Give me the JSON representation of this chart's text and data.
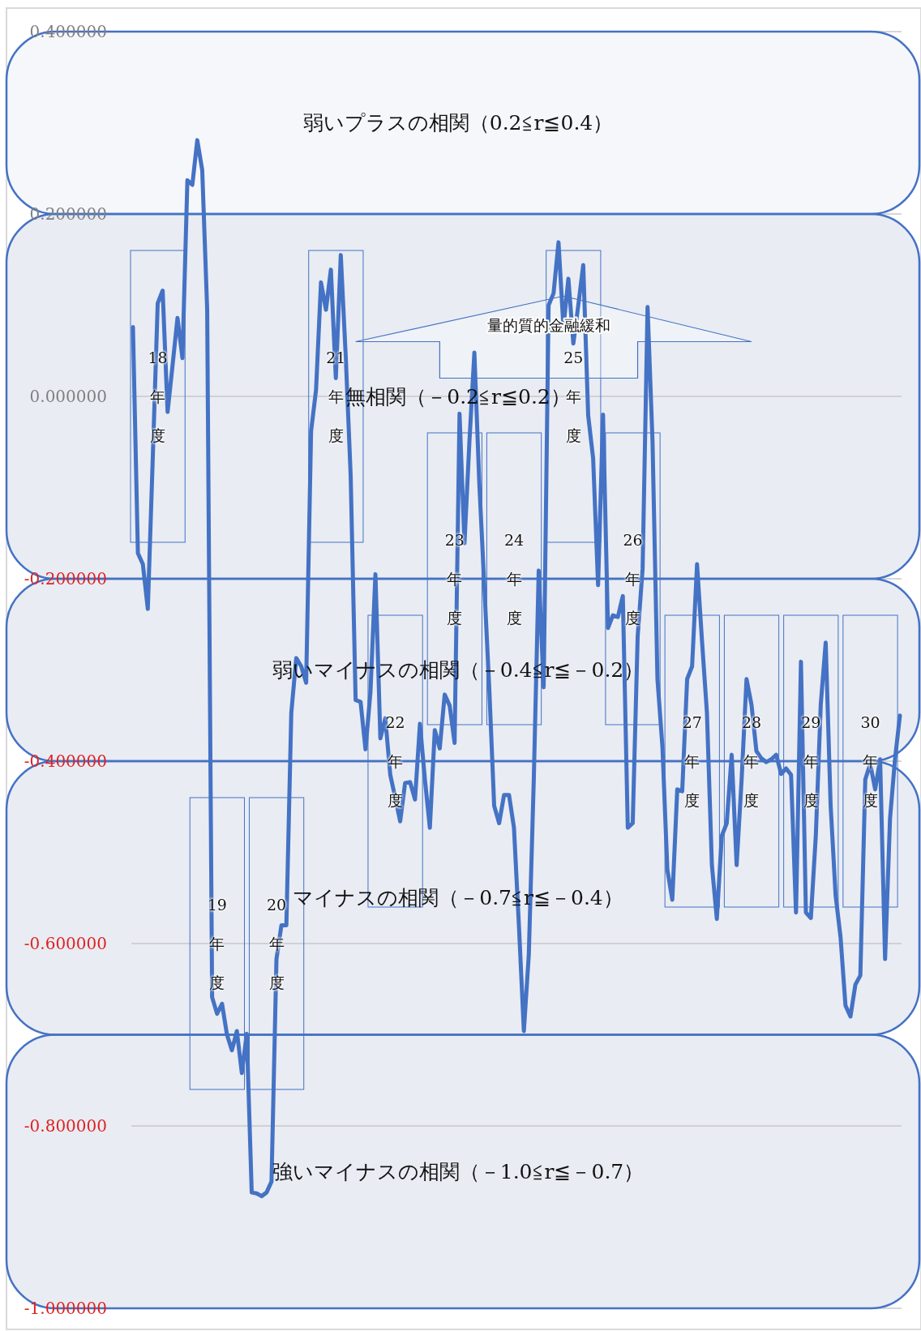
{
  "chart_data": {
    "type": "line",
    "categories": [
      null,
      null,
      null,
      null,
      null,
      null,
      null,
      null,
      null,
      null,
      null,
      null,
      null,
      null,
      null,
      null,
      null,
      null,
      null,
      null,
      null,
      null,
      null,
      null,
      null,
      null,
      null,
      null,
      null,
      null,
      null,
      null,
      null,
      null,
      null,
      null,
      null,
      null,
      null,
      null,
      null,
      null,
      null,
      null,
      null,
      null,
      null,
      null,
      null,
      null,
      null,
      null,
      null,
      null,
      null,
      null,
      null,
      null,
      null,
      null,
      null,
      null,
      null,
      null,
      null,
      null,
      null,
      null,
      null,
      null,
      null,
      null,
      null,
      null,
      null,
      null,
      null,
      null,
      null,
      null,
      null,
      null,
      null,
      null,
      null,
      null,
      null,
      null,
      null,
      null,
      null,
      null,
      null,
      null,
      null,
      null,
      null,
      null,
      null,
      null,
      null,
      null,
      null,
      null,
      null,
      null,
      null,
      null,
      null,
      null,
      null,
      null,
      null,
      null,
      null,
      null,
      null,
      null,
      null,
      null,
      null,
      null,
      null,
      null,
      null,
      null,
      null,
      null,
      null,
      null,
      null,
      null,
      null,
      null,
      null,
      null,
      null,
      null,
      null,
      null,
      null,
      null,
      null,
      null,
      null,
      null,
      null,
      null,
      null,
      null,
      null,
      null,
      null,
      null,
      null,
      null
    ],
    "series": [
      {
        "color": "#4472c4",
        "values": [
          0.076,
          -0.172,
          -0.184,
          -0.233,
          -0.068,
          0.102,
          0.116,
          -0.017,
          0.034,
          0.086,
          0.042,
          0.237,
          0.232,
          0.281,
          0.248,
          0.095,
          -0.659,
          -0.677,
          -0.666,
          -0.7,
          -0.717,
          -0.696,
          -0.742,
          -0.699,
          -0.873,
          -0.874,
          -0.877,
          -0.873,
          -0.861,
          -0.617,
          -0.58,
          -0.58,
          -0.347,
          -0.287,
          -0.296,
          -0.314,
          -0.038,
          0.007,
          0.125,
          0.095,
          0.139,
          0.02,
          0.155,
          0.044,
          -0.087,
          -0.333,
          -0.335,
          -0.387,
          -0.324,
          -0.195,
          -0.375,
          -0.353,
          -0.415,
          -0.44,
          -0.466,
          -0.424,
          -0.423,
          -0.442,
          -0.359,
          -0.42,
          -0.473,
          -0.366,
          -0.386,
          -0.327,
          -0.339,
          -0.38,
          -0.019,
          -0.161,
          -0.049,
          0.048,
          -0.096,
          -0.207,
          -0.319,
          -0.449,
          -0.468,
          -0.437,
          -0.437,
          -0.473,
          -0.58,
          -0.696,
          -0.612,
          -0.421,
          -0.191,
          -0.319,
          0.1,
          0.113,
          0.169,
          0.076,
          0.129,
          0.058,
          0.1,
          0.144,
          -0.021,
          -0.068,
          -0.207,
          -0.02,
          -0.254,
          -0.24,
          -0.242,
          -0.219,
          -0.473,
          -0.468,
          -0.263,
          -0.189,
          0.098,
          -0.049,
          -0.31,
          -0.384,
          -0.519,
          -0.552,
          -0.431,
          -0.433,
          -0.31,
          -0.296,
          -0.184,
          -0.268,
          -0.347,
          -0.514,
          -0.573,
          -0.482,
          -0.468,
          -0.393,
          -0.514,
          -0.421,
          -0.31,
          -0.338,
          -0.389,
          -0.397,
          -0.401,
          -0.398,
          -0.393,
          -0.414,
          -0.408,
          -0.415,
          -0.566,
          -0.291,
          -0.566,
          -0.572,
          -0.482,
          -0.338,
          -0.27,
          -0.449,
          -0.547,
          -0.593,
          -0.668,
          -0.68,
          -0.645,
          -0.635,
          -0.42,
          -0.403,
          -0.431,
          -0.398,
          -0.617,
          -0.463,
          -0.398,
          -0.35
        ]
      }
    ],
    "ylim": [
      -1.0,
      0.4
    ],
    "yticks": [
      {
        "value": 0.4,
        "label": "0.400000"
      },
      {
        "value": 0.2,
        "label": "0.200000"
      },
      {
        "value": 0,
        "label": "0.000000"
      },
      {
        "value": -0.2,
        "label": "-0.200000"
      },
      {
        "value": -0.4,
        "label": "-0.400000"
      },
      {
        "value": -0.6,
        "label": "-0.600000"
      },
      {
        "value": -0.8,
        "label": "-0.800000"
      },
      {
        "value": -1.0,
        "label": "-1.000000"
      }
    ],
    "grid": "y",
    "tick_labels": "y",
    "bands": [
      {
        "axis": "y",
        "from": 0.2,
        "to": 0.4,
        "label": "弱いプラスの相関（0.2≦r≦0.4）",
        "color": "#f6f7fb"
      },
      {
        "axis": "y",
        "from": -0.2,
        "to": 0.2,
        "label": "無相関（－0.2≦r≦0.2）",
        "color": "#e9ecf3"
      },
      {
        "axis": "y",
        "from": -0.4,
        "to": -0.2,
        "label": "弱いマイナスの相関（－0.4≦r≦－0.2）",
        "color": "#e9ecf3"
      },
      {
        "axis": "y",
        "from": -0.7,
        "to": -0.4,
        "label": "マイナスの相関（－0.7≦r≦－0.4）",
        "color": "#e9ecf3"
      },
      {
        "axis": "y",
        "from": -1.0,
        "to": -0.7,
        "label": "強いマイナスの相関（－1.0≦r≦－0.7）",
        "color": "#e9ecf3"
      }
    ],
    "annotations": [
      "18年度",
      "19年度",
      "20年度",
      "21年度",
      "22年度",
      "23年度",
      "24年度",
      "25年度",
      "26年度",
      "27年度",
      "28年度",
      "29年度",
      "30年度",
      "量的質的金融緩和"
    ]
  }
}
